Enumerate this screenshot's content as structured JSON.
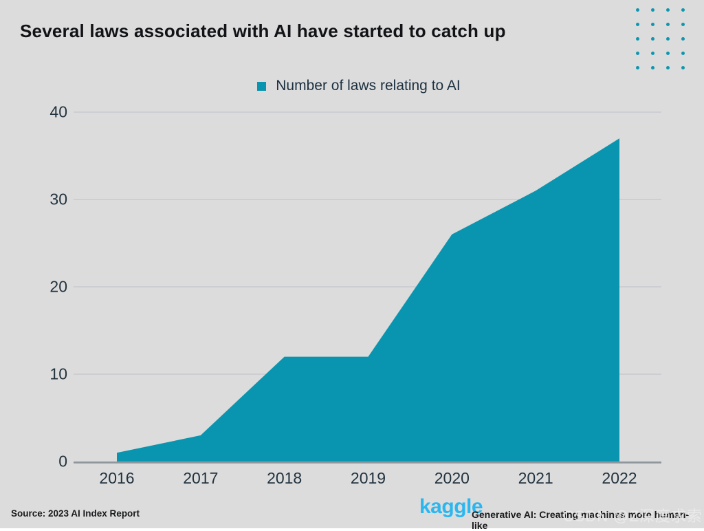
{
  "page": {
    "background": "#dcdcdc"
  },
  "header": {
    "title": "Several laws associated with AI have started to catch up"
  },
  "decor": {
    "dots_rows": 5,
    "dots_cols": 4,
    "dot_color": "#0e96af"
  },
  "legend": {
    "label": "Number of laws relating to AI",
    "swatch_color": "#0995af"
  },
  "chart_data": {
    "type": "area",
    "title": "Several laws associated with AI have started to catch up",
    "legend_entries": [
      "Number of laws relating to AI"
    ],
    "legend_position": "top-center",
    "categories": [
      "2016",
      "2017",
      "2018",
      "2019",
      "2020",
      "2021",
      "2022"
    ],
    "values": [
      1,
      3,
      12,
      12,
      26,
      31,
      37
    ],
    "xlabel": "",
    "ylabel": "",
    "ylim": [
      0,
      40
    ],
    "yticks": [
      0,
      10,
      20,
      30,
      40
    ],
    "grid": "horizontal",
    "area_color": "#0995af",
    "gridline_color": "#c6cacd",
    "axisline_color": "#8e969c"
  },
  "footer": {
    "source": "Source: 2023 AI Index Report",
    "brand": "kaggle",
    "brand_color": "#2ab7f0",
    "caption": "Generative AI: Creating machines more human-like",
    "watermark": "CSDN @Z深度求索"
  }
}
